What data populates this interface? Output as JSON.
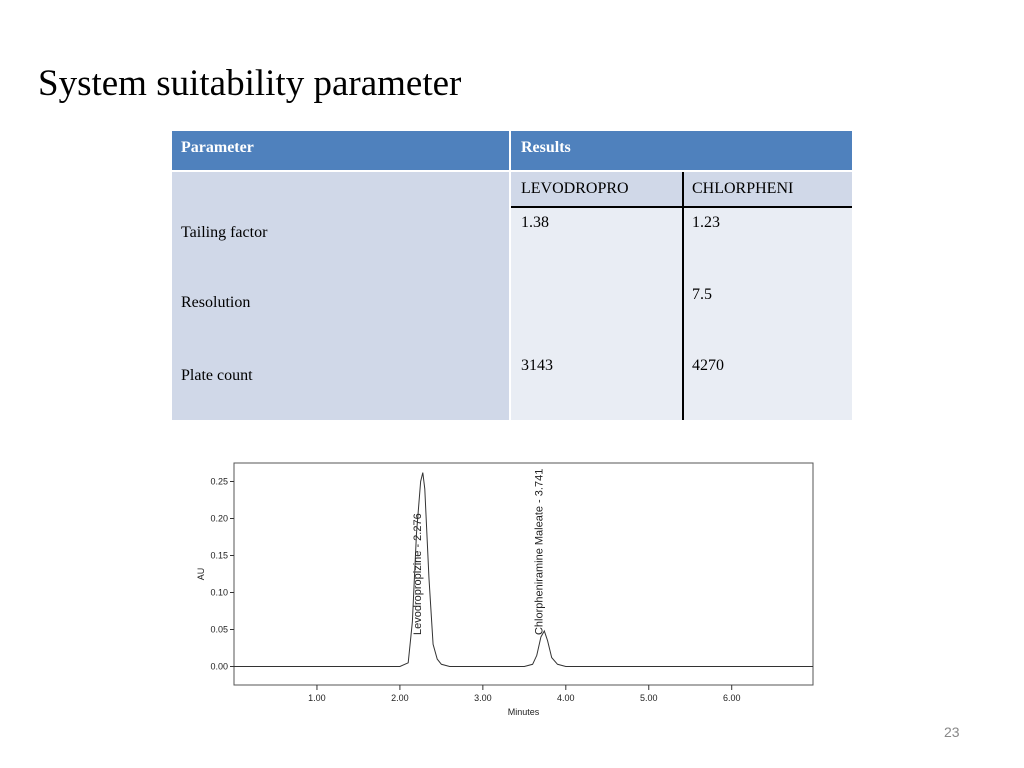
{
  "title": "System suitability parameter",
  "table": {
    "header": [
      "Parameter",
      "Results"
    ],
    "subheader": [
      "LEVODROPRO",
      "CHLORPHENI"
    ],
    "rows": [
      {
        "label": "Tailing factor",
        "values": [
          1.38,
          1.23
        ]
      },
      {
        "label": "Resolution",
        "values": [
          null,
          7.5
        ]
      },
      {
        "label": "Plate count",
        "values": [
          3143,
          4270
        ]
      }
    ]
  },
  "chart_data": {
    "type": "line",
    "xlabel": "Minutes",
    "ylabel": "AU",
    "color": "#333333",
    "x": [
      0,
      0.5,
      1.0,
      1.5,
      2.0,
      2.1,
      2.15,
      2.2,
      2.25,
      2.276,
      2.3,
      2.35,
      2.4,
      2.45,
      2.5,
      2.6,
      3.0,
      3.5,
      3.6,
      3.65,
      3.7,
      3.741,
      3.78,
      3.83,
      3.9,
      4.0,
      4.5,
      5.0,
      6.0,
      6.98
    ],
    "values": [
      0,
      0,
      0,
      0,
      0,
      0.005,
      0.06,
      0.18,
      0.25,
      0.262,
      0.24,
      0.12,
      0.03,
      0.01,
      0.003,
      0,
      0,
      0,
      0.003,
      0.015,
      0.04,
      0.048,
      0.035,
      0.012,
      0.003,
      0,
      0,
      0,
      0,
      0
    ],
    "xlim": [
      0,
      6.98
    ],
    "ylim": [
      -0.025,
      0.275
    ],
    "xticks": [
      {
        "value": 1,
        "label": "1.00"
      },
      {
        "value": 2,
        "label": "2.00"
      },
      {
        "value": 3,
        "label": "3.00"
      },
      {
        "value": 4,
        "label": "4.00"
      },
      {
        "value": 5,
        "label": "5.00"
      },
      {
        "value": 6,
        "label": "6.00"
      }
    ],
    "yticks": [
      {
        "value": 0,
        "label": "0.00"
      },
      {
        "value": 0.05,
        "label": "0.05"
      },
      {
        "value": 0.1,
        "label": "0.10"
      },
      {
        "value": 0.15,
        "label": "0.15"
      },
      {
        "value": 0.2,
        "label": "0.20"
      },
      {
        "value": 0.25,
        "label": "0.25"
      }
    ],
    "annotations": [
      {
        "text": "Levodropropizine - 2.276",
        "x": 2.276
      },
      {
        "text": "Chlorpheniramine Maleate - 3.741",
        "x": 3.741
      }
    ]
  },
  "page_number": "23"
}
